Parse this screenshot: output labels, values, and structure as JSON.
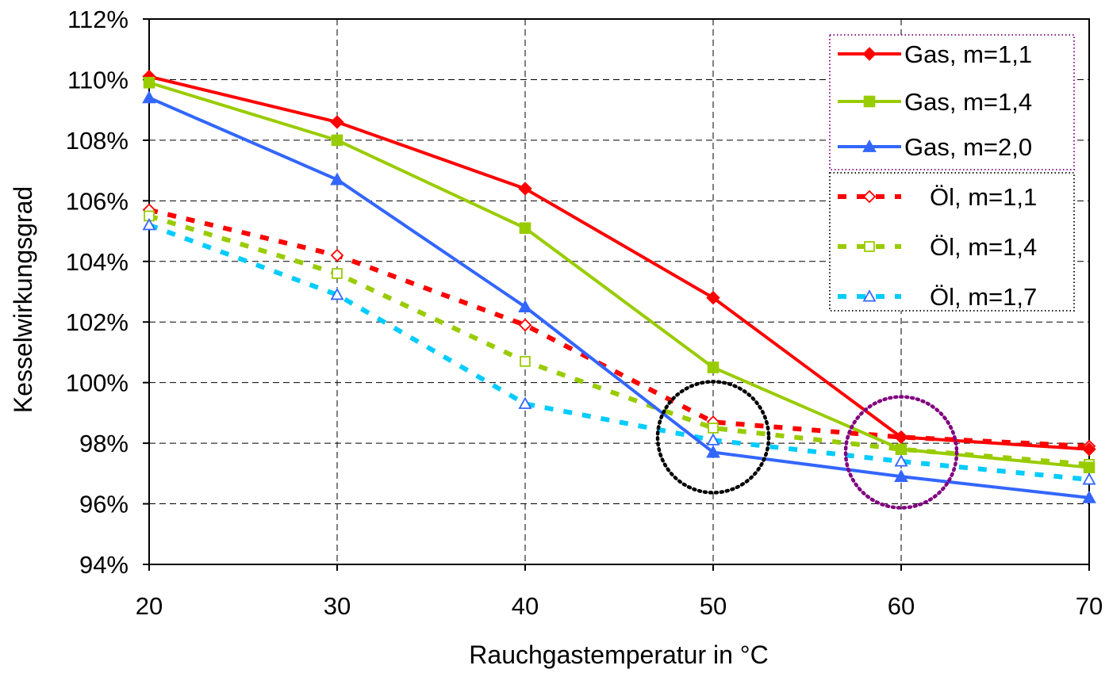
{
  "chart_data": {
    "type": "line",
    "xlabel": "Rauchgastemperatur in °C",
    "ylabel": "Kesselwirkungsgrad",
    "x": [
      20,
      30,
      40,
      50,
      60,
      70
    ],
    "xlim": [
      20,
      70
    ],
    "ylim": [
      94,
      112
    ],
    "x_ticks": [
      "20",
      "30",
      "40",
      "50",
      "60",
      "70"
    ],
    "y_ticks": [
      "94%",
      "96%",
      "98%",
      "100%",
      "102%",
      "104%",
      "106%",
      "108%",
      "110%",
      "112%"
    ],
    "grid": true,
    "legend_position": "top-right",
    "series": [
      {
        "name": "Gas, m=1,1",
        "color": "#ff0000",
        "style": "solid",
        "marker": "diamond-filled",
        "values": [
          110.1,
          108.6,
          106.4,
          102.8,
          98.2,
          97.8
        ]
      },
      {
        "name": "Gas, m=1,4",
        "color": "#99cc00",
        "style": "solid",
        "marker": "square-filled",
        "values": [
          109.9,
          108.0,
          105.1,
          100.5,
          97.8,
          97.2
        ]
      },
      {
        "name": "Gas, m=2,0",
        "color": "#3366ff",
        "style": "solid",
        "marker": "triangle-filled",
        "values": [
          109.4,
          106.7,
          102.5,
          97.7,
          96.9,
          96.2
        ]
      },
      {
        "name": "Öl, m=1,1",
        "color": "#ff0000",
        "style": "dotted",
        "marker": "diamond-open",
        "values": [
          105.7,
          104.2,
          101.9,
          98.7,
          98.2,
          97.9
        ]
      },
      {
        "name": "Öl, m=1,4",
        "color": "#99cc00",
        "style": "dotted",
        "marker": "square-open",
        "values": [
          105.5,
          103.6,
          100.7,
          98.5,
          97.8,
          97.3
        ]
      },
      {
        "name": "Öl, m=1,7",
        "color": "#00ccff",
        "marker_color": "#3366ff",
        "style": "dotted",
        "marker": "triangle-open",
        "values": [
          105.2,
          102.9,
          99.3,
          98.1,
          97.4,
          96.8
        ]
      }
    ],
    "annotations": [
      {
        "type": "dotted-circle",
        "color": "#000000",
        "x": 50,
        "y": 98.2
      },
      {
        "type": "dotted-circle",
        "color": "#800080",
        "x": 60,
        "y": 97.7
      }
    ]
  }
}
